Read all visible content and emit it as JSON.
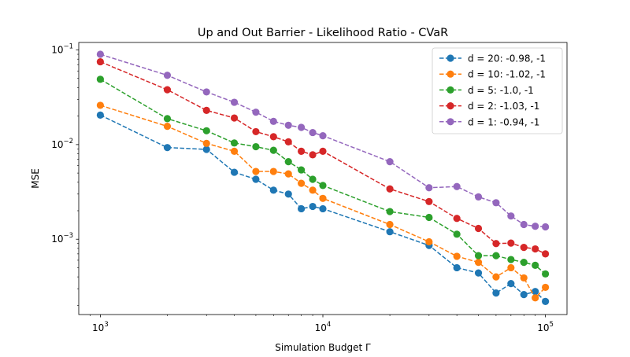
{
  "chart_data": {
    "type": "line",
    "title": "Up and Out Barrier - Likelihood Ratio - CVaR",
    "xlabel": "Simulation Budget Γ",
    "ylabel": "MSE",
    "xscale": "log",
    "yscale": "log",
    "xlim": [
      800,
      125000
    ],
    "ylim": [
      0.00016,
      0.12
    ],
    "x_ticks": [
      {
        "value": 1000,
        "base": "10",
        "exp": "3"
      },
      {
        "value": 10000,
        "base": "10",
        "exp": "4"
      },
      {
        "value": 100000,
        "base": "10",
        "exp": "5"
      }
    ],
    "y_ticks": [
      {
        "value": 0.001,
        "base": "10",
        "exp": "−3"
      },
      {
        "value": 0.01,
        "base": "10",
        "exp": "−2"
      },
      {
        "value": 0.1,
        "base": "10",
        "exp": "−1"
      }
    ],
    "legend_position": "top-right",
    "grid": false,
    "x": [
      1000,
      2000,
      3000,
      4000,
      5000,
      6000,
      7000,
      8000,
      9000,
      10000,
      20000,
      30000,
      40000,
      50000,
      60000,
      70000,
      80000,
      90000,
      100000
    ],
    "series": [
      {
        "name": "d = 20: -0.98, -1",
        "color": "#1f77b4",
        "values": [
          0.0205,
          0.0093,
          0.0089,
          0.0051,
          0.0043,
          0.0033,
          0.003,
          0.0021,
          0.00222,
          0.0021,
          0.0012,
          0.00086,
          0.0005,
          0.00044,
          0.00027,
          0.00034,
          0.00026,
          0.00028,
          0.00022
        ]
      },
      {
        "name": "d = 10: -1.02, -1",
        "color": "#ff7f0e",
        "values": [
          0.026,
          0.0156,
          0.0103,
          0.0085,
          0.0052,
          0.0052,
          0.0049,
          0.0039,
          0.0033,
          0.0027,
          0.00143,
          0.00094,
          0.00066,
          0.00057,
          0.0004,
          0.0005,
          0.00039,
          0.00024,
          0.00031
        ]
      },
      {
        "name": "d = 5: -1.0, -1",
        "color": "#2ca02c",
        "values": [
          0.049,
          0.0188,
          0.014,
          0.0104,
          0.0095,
          0.0087,
          0.0066,
          0.0054,
          0.0043,
          0.0037,
          0.00196,
          0.0017,
          0.00113,
          0.00067,
          0.00067,
          0.00061,
          0.00057,
          0.00053,
          0.00043
        ]
      },
      {
        "name": "d = 2: -1.03, -1",
        "color": "#d62728",
        "values": [
          0.075,
          0.038,
          0.023,
          0.0191,
          0.0137,
          0.0121,
          0.0107,
          0.0085,
          0.0078,
          0.0085,
          0.0034,
          0.0025,
          0.00166,
          0.0013,
          0.0009,
          0.00091,
          0.00082,
          0.00079,
          0.0007
        ]
      },
      {
        "name": "d = 1: -0.94, -1",
        "color": "#9467bd",
        "values": [
          0.09,
          0.054,
          0.036,
          0.028,
          0.022,
          0.0176,
          0.016,
          0.0152,
          0.0134,
          0.0124,
          0.0066,
          0.0035,
          0.0036,
          0.0028,
          0.00243,
          0.00176,
          0.00143,
          0.00137,
          0.00135
        ]
      }
    ]
  }
}
